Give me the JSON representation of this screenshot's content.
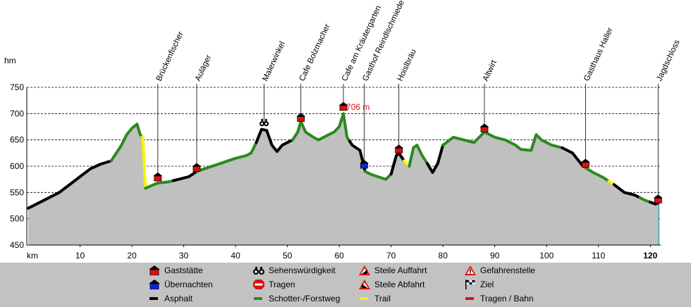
{
  "chart_data": {
    "type": "area",
    "ylabel": "hm",
    "xlabel": "km",
    "xlim": [
      0,
      122
    ],
    "ylim": [
      450,
      750
    ],
    "x_ticks": [
      10,
      20,
      30,
      40,
      50,
      60,
      70,
      80,
      90,
      100,
      110,
      120
    ],
    "y_ticks": [
      450,
      500,
      550,
      600,
      650,
      700,
      750
    ],
    "grid": "horizontal dashed",
    "max_label": "706 m",
    "max_point": {
      "x": 60.8,
      "y": 706
    },
    "profile": [
      [
        0,
        520
      ],
      [
        2,
        530
      ],
      [
        4,
        540
      ],
      [
        6,
        550
      ],
      [
        8,
        565
      ],
      [
        10,
        580
      ],
      [
        12,
        595
      ],
      [
        14,
        604
      ],
      [
        16,
        610
      ],
      [
        17,
        625
      ],
      [
        18,
        640
      ],
      [
        19,
        660
      ],
      [
        20,
        672
      ],
      [
        21,
        680
      ],
      [
        21.6,
        660
      ],
      [
        22.1,
        655
      ],
      [
        22.6,
        558
      ],
      [
        24,
        564
      ],
      [
        25,
        568
      ],
      [
        27,
        570
      ],
      [
        29,
        575
      ],
      [
        31,
        580
      ],
      [
        32.5,
        590
      ],
      [
        34,
        595
      ],
      [
        37,
        605
      ],
      [
        40,
        615
      ],
      [
        42,
        620
      ],
      [
        43,
        625
      ],
      [
        44,
        645
      ],
      [
        45,
        670
      ],
      [
        46,
        668
      ],
      [
        47,
        640
      ],
      [
        48,
        628
      ],
      [
        49,
        640
      ],
      [
        50,
        645
      ],
      [
        51,
        650
      ],
      [
        52,
        665
      ],
      [
        52.6,
        685
      ],
      [
        53.5,
        665
      ],
      [
        55,
        655
      ],
      [
        56,
        650
      ],
      [
        58,
        660
      ],
      [
        59,
        665
      ],
      [
        60,
        675
      ],
      [
        60.8,
        700
      ],
      [
        61.5,
        655
      ],
      [
        62.5,
        640
      ],
      [
        64,
        630
      ],
      [
        65,
        590
      ],
      [
        66,
        585
      ],
      [
        68,
        578
      ],
      [
        69,
        575
      ],
      [
        70,
        585
      ],
      [
        71,
        620
      ],
      [
        71.5,
        625
      ],
      [
        72.5,
        610
      ],
      [
        73.5,
        600
      ],
      [
        74.3,
        635
      ],
      [
        75,
        640
      ],
      [
        76,
        620
      ],
      [
        77,
        605
      ],
      [
        78,
        588
      ],
      [
        79,
        605
      ],
      [
        80,
        640
      ],
      [
        82,
        655
      ],
      [
        84,
        650
      ],
      [
        86,
        645
      ],
      [
        88,
        665
      ],
      [
        90,
        655
      ],
      [
        92,
        650
      ],
      [
        94,
        640
      ],
      [
        95,
        632
      ],
      [
        97,
        630
      ],
      [
        98,
        660
      ],
      [
        99,
        650
      ],
      [
        101,
        640
      ],
      [
        103,
        635
      ],
      [
        105,
        625
      ],
      [
        107,
        600
      ],
      [
        109,
        588
      ],
      [
        111,
        578
      ],
      [
        113,
        565
      ],
      [
        115,
        550
      ],
      [
        117,
        545
      ],
      [
        119,
        535
      ],
      [
        121,
        528
      ],
      [
        121.5,
        530
      ]
    ],
    "segments": [
      {
        "surface": "Asphalt",
        "from": 0,
        "to": 16
      },
      {
        "surface": "Schotter-/Forstweg",
        "from": 16,
        "to": 22
      },
      {
        "surface": "Trail",
        "from": 22,
        "to": 22.6
      },
      {
        "surface": "Schotter-/Forstweg",
        "from": 22.6,
        "to": 28
      },
      {
        "surface": "Asphalt",
        "from": 28,
        "to": 32.5
      },
      {
        "surface": "Schotter-/Forstweg",
        "from": 32.5,
        "to": 44
      },
      {
        "surface": "Asphalt",
        "from": 44,
        "to": 51
      },
      {
        "surface": "Schotter-/Forstweg",
        "from": 51,
        "to": 62
      },
      {
        "surface": "Asphalt",
        "from": 62,
        "to": 65
      },
      {
        "surface": "Schotter-/Forstweg",
        "from": 65,
        "to": 70
      },
      {
        "surface": "Asphalt",
        "from": 70,
        "to": 72.5
      },
      {
        "surface": "Trail",
        "from": 72.5,
        "to": 73.5
      },
      {
        "surface": "Schotter-/Forstweg",
        "from": 73.5,
        "to": 77
      },
      {
        "surface": "Asphalt",
        "from": 77,
        "to": 80
      },
      {
        "surface": "Schotter-/Forstweg",
        "from": 80,
        "to": 103
      },
      {
        "surface": "Asphalt",
        "from": 103,
        "to": 107
      },
      {
        "surface": "Schotter-/Forstweg",
        "from": 107,
        "to": 112
      },
      {
        "surface": "Trail",
        "from": 112,
        "to": 113
      },
      {
        "surface": "Asphalt",
        "from": 113,
        "to": 118
      },
      {
        "surface": "Schotter-/Forstweg",
        "from": 118,
        "to": 120
      },
      {
        "surface": "Asphalt",
        "from": 120,
        "to": 121.5
      }
    ],
    "waypoints": [
      {
        "name": "Brückenfischer",
        "x": 25,
        "y": 572,
        "type": "Gaststätte"
      },
      {
        "name": "Auläger",
        "x": 32.5,
        "y": 590,
        "type": "Gaststätte"
      },
      {
        "name": "Malerwinkel",
        "x": 45.5,
        "y": 670,
        "type": "Sehenswürdigkeit"
      },
      {
        "name": "Cafe Bolzmacher",
        "x": 52.6,
        "y": 685,
        "type": "Gaststätte"
      },
      {
        "name": "Cafe am Kräutergarten",
        "x": 60.8,
        "y": 706,
        "type": "Gaststätte"
      },
      {
        "name": "Gasthof Reindlschmiede",
        "x": 64.8,
        "y": 596,
        "type": "Übernachten"
      },
      {
        "name": "Hoislbräu",
        "x": 71.5,
        "y": 625,
        "type": "Gaststätte"
      },
      {
        "name": "Altwirt",
        "x": 88,
        "y": 665,
        "type": "Gaststätte"
      },
      {
        "name": "Gasthaus Haller",
        "x": 107.5,
        "y": 598,
        "type": "Gaststätte"
      },
      {
        "name": "Jagdschloss",
        "x": 121.5,
        "y": 530,
        "type": "Gaststätte"
      }
    ],
    "colors": {
      "Asphalt": "#000000",
      "Schotter-/Forstweg": "#2b8a1e",
      "Trail": "#f5f500",
      "area": "#c0c0c0",
      "Gaststätte": "#e01010",
      "Übernachten": "#1020e0",
      "max_label": "#e01010"
    }
  },
  "legend": [
    {
      "label": "Gaststätte",
      "icon": "gaststaette-icon"
    },
    {
      "label": "Sehenswürdigkeit",
      "icon": "binoculars-icon"
    },
    {
      "label": "Steile Auffahrt",
      "icon": "steep-up-icon"
    },
    {
      "label": "Gefahrenstelle",
      "icon": "danger-icon"
    },
    {
      "label": "Übernachten",
      "icon": "uebernachten-icon"
    },
    {
      "label": "Tragen",
      "icon": "stop-icon"
    },
    {
      "label": "Steile Abfahrt",
      "icon": "steep-down-icon"
    },
    {
      "label": "Ziel",
      "icon": "finish-flag-icon"
    },
    {
      "label": "Asphalt",
      "icon": "asphalt-line-icon"
    },
    {
      "label": "Schotter-/Forstweg",
      "icon": "gravel-line-icon"
    },
    {
      "label": "Trail",
      "icon": "trail-line-icon"
    },
    {
      "label": "Tragen / Bahn",
      "icon": "carry-line-icon"
    }
  ]
}
